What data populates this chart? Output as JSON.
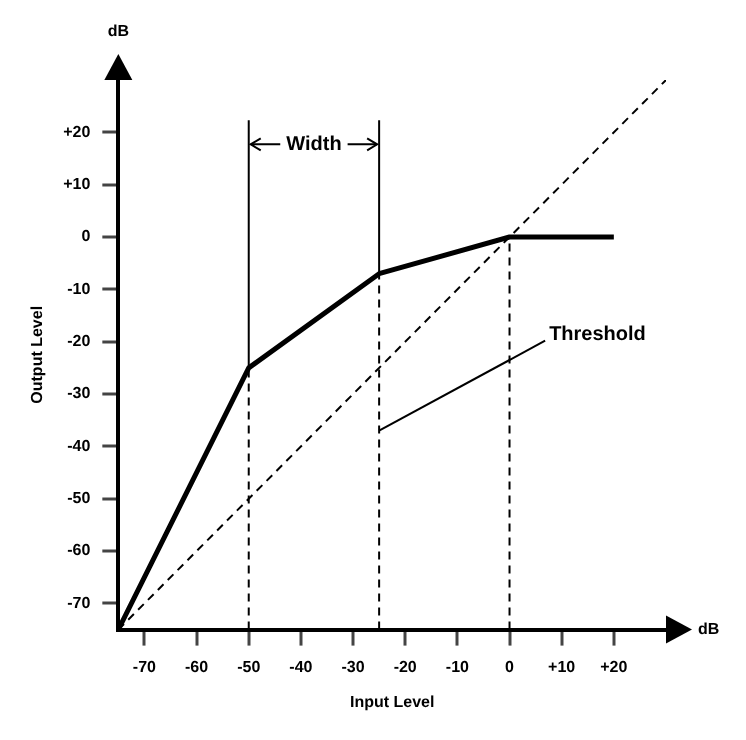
{
  "chart_data": {
    "type": "line",
    "xlabel": "Input Level",
    "ylabel": "Output Level",
    "series": [
      {
        "x": [
          -75,
          -50,
          -25,
          0,
          20
        ],
        "values": [
          -75,
          -25,
          -7,
          0,
          0
        ],
        "color": "#000000",
        "line_style": "solid"
      },
      {
        "x": [
          -75,
          30
        ],
        "values": [
          -75,
          30
        ],
        "color": "#000000",
        "line_style": "dashed"
      }
    ],
    "xlim": [
      -75,
      30
    ],
    "ylim": [
      -75,
      30
    ],
    "xticks": [
      -70,
      -60,
      -50,
      -40,
      -30,
      -20,
      -10,
      0,
      {
        "value": 10,
        "label": "+10"
      },
      {
        "value": 20,
        "label": "+20"
      }
    ],
    "yticks": [
      -70,
      -60,
      -50,
      -40,
      -30,
      -20,
      -10,
      0,
      {
        "value": 10,
        "label": "+10"
      },
      {
        "value": 20,
        "label": "+20"
      }
    ],
    "ref_lines": [
      {
        "axis": "x",
        "value": -50,
        "line_style": "dashed"
      },
      {
        "axis": "x",
        "value": -25,
        "line_style": "dashed"
      },
      {
        "axis": "x",
        "value": 0,
        "line_style": "dashed"
      }
    ],
    "annotations": [
      "dB",
      "dB",
      "Width",
      {
        "text": "Threshold",
        "x": -25,
        "y": -37
      }
    ],
    "marker": "none",
    "legend": false
  }
}
